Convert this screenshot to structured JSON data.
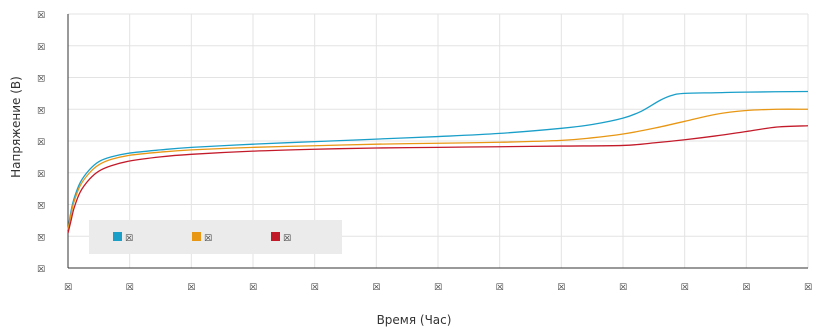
{
  "chart_data": {
    "type": "line",
    "title": "",
    "xlabel": "Время (Час)",
    "ylabel": "Напряжение (В)",
    "x_tick_labels": [
      "☒",
      "☒",
      "☒",
      "☒",
      "☒",
      "☒",
      "☒",
      "☒",
      "☒",
      "☒",
      "☒",
      "☒",
      "☒"
    ],
    "y_tick_labels": [
      "☒",
      "☒",
      "☒",
      "☒",
      "☒",
      "☒",
      "☒",
      "☒",
      "☒"
    ],
    "xlim": [
      0,
      12
    ],
    "ylim": [
      0,
      8
    ],
    "grid": true,
    "legend_position": "bottom-left",
    "series": [
      {
        "name": "☒",
        "color": "#1a9fc9",
        "x": [
          0,
          0.05,
          0.1,
          0.2,
          0.35,
          0.5,
          0.7,
          1.0,
          1.5,
          2,
          3,
          4,
          5,
          6,
          7,
          8,
          8.5,
          9,
          9.3,
          9.6,
          9.8,
          10,
          10.5,
          11,
          12
        ],
        "y": [
          1.2,
          1.8,
          2.2,
          2.7,
          3.1,
          3.35,
          3.5,
          3.62,
          3.72,
          3.8,
          3.9,
          3.98,
          4.06,
          4.14,
          4.24,
          4.4,
          4.52,
          4.72,
          4.94,
          5.28,
          5.44,
          5.5,
          5.52,
          5.54,
          5.56
        ]
      },
      {
        "name": "☒",
        "color": "#e89714",
        "x": [
          0,
          0.05,
          0.1,
          0.2,
          0.35,
          0.5,
          0.7,
          1.0,
          1.5,
          2,
          3,
          4,
          5,
          6,
          7,
          8,
          8.5,
          9,
          9.5,
          10,
          10.5,
          11,
          11.5,
          12
        ],
        "y": [
          1.2,
          1.7,
          2.1,
          2.6,
          3.0,
          3.25,
          3.42,
          3.55,
          3.65,
          3.72,
          3.8,
          3.85,
          3.9,
          3.93,
          3.96,
          4.02,
          4.1,
          4.22,
          4.4,
          4.62,
          4.84,
          4.96,
          5.0,
          5.0
        ]
      },
      {
        "name": "☒",
        "color": "#c31a2a",
        "x": [
          0,
          0.05,
          0.1,
          0.2,
          0.35,
          0.5,
          0.7,
          1.0,
          1.5,
          2,
          3,
          4,
          5,
          6,
          7,
          8,
          9,
          9.5,
          10,
          10.5,
          11,
          11.5,
          12
        ],
        "y": [
          1.1,
          1.5,
          1.9,
          2.4,
          2.8,
          3.05,
          3.22,
          3.37,
          3.5,
          3.58,
          3.68,
          3.74,
          3.78,
          3.8,
          3.82,
          3.84,
          3.86,
          3.94,
          4.04,
          4.16,
          4.3,
          4.44,
          4.48
        ]
      }
    ]
  }
}
